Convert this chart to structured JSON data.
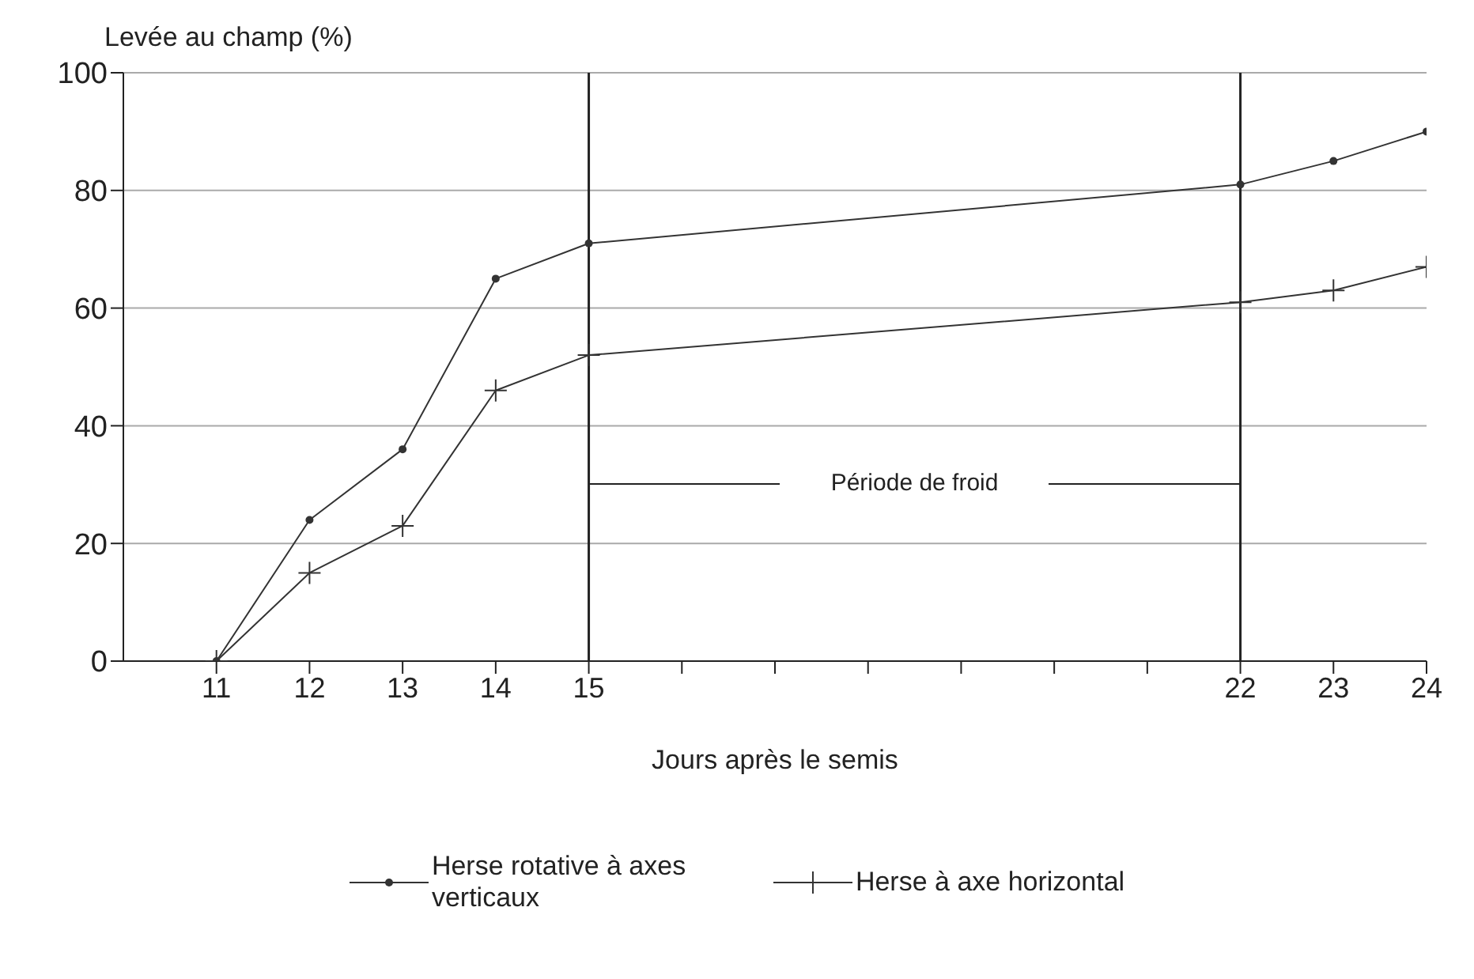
{
  "chart_data": {
    "type": "line",
    "ylabel": "Levée au champ (%)",
    "xlabel": "Jours après le semis",
    "x": [
      11,
      12,
      13,
      14,
      15,
      22,
      23,
      24
    ],
    "series": [
      {
        "name": "Herse rotative à axes verticaux",
        "color": "#333333",
        "marker": "circle",
        "values": [
          0,
          24,
          36,
          65,
          71,
          81,
          85,
          90
        ]
      },
      {
        "name": "Herse à axe horizontal",
        "color": "#333333",
        "marker": "cross",
        "values": [
          0,
          15,
          23,
          46,
          52,
          61,
          63,
          67
        ]
      }
    ],
    "xlim": [
      10,
      24
    ],
    "xticks": [
      11,
      12,
      13,
      14,
      15,
      {
        "value": 16,
        "label": null
      },
      {
        "value": 17,
        "label": null
      },
      {
        "value": 18,
        "label": null
      },
      {
        "value": 19,
        "label": null
      },
      {
        "value": 20,
        "label": null
      },
      {
        "value": 21,
        "label": null
      },
      22,
      23,
      24
    ],
    "ylim": [
      0,
      100
    ],
    "yticks": [
      0,
      20,
      40,
      60,
      80,
      100
    ],
    "grid": "y",
    "legend": "bottom",
    "line_style": "solid",
    "ref_lines": [
      {
        "axis": "x",
        "value": 15
      },
      {
        "axis": "x",
        "value": 22
      }
    ],
    "annotations": [
      "Période de froid"
    ]
  }
}
